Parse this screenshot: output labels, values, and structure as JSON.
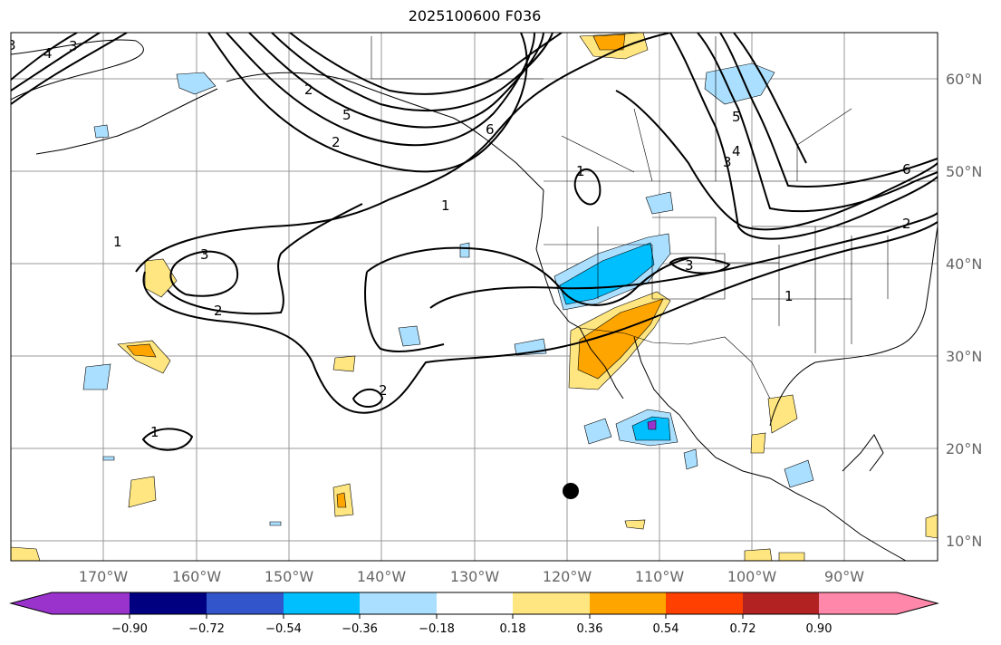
{
  "title": "2025100600 F036",
  "map": {
    "lon_labels": [
      "170°W",
      "160°W",
      "150°W",
      "140°W",
      "130°W",
      "120°W",
      "110°W",
      "100°W",
      "90°W"
    ],
    "lat_labels": [
      "60°N",
      "50°N",
      "40°N",
      "30°N",
      "20°N",
      "10°N"
    ],
    "contour_labels": [
      "3",
      "4",
      "3",
      "5",
      "2",
      "6",
      "1",
      "1",
      "2",
      "3",
      "3",
      "1",
      "2",
      "2",
      "1",
      "6",
      "4",
      "3",
      "5",
      "1",
      "2"
    ]
  },
  "colorbar": {
    "ticks": [
      "−0.90",
      "−0.72",
      "−0.54",
      "−0.36",
      "−0.18",
      "0.18",
      "0.36",
      "0.54",
      "0.72",
      "0.90"
    ],
    "colors": [
      "#9933cc",
      "#000080",
      "#3355cc",
      "#00bfff",
      "#aadfff",
      "#ffffff",
      "#ffe680",
      "#ffa500",
      "#ff4000",
      "#b22222",
      "#ff88aa"
    ]
  }
}
